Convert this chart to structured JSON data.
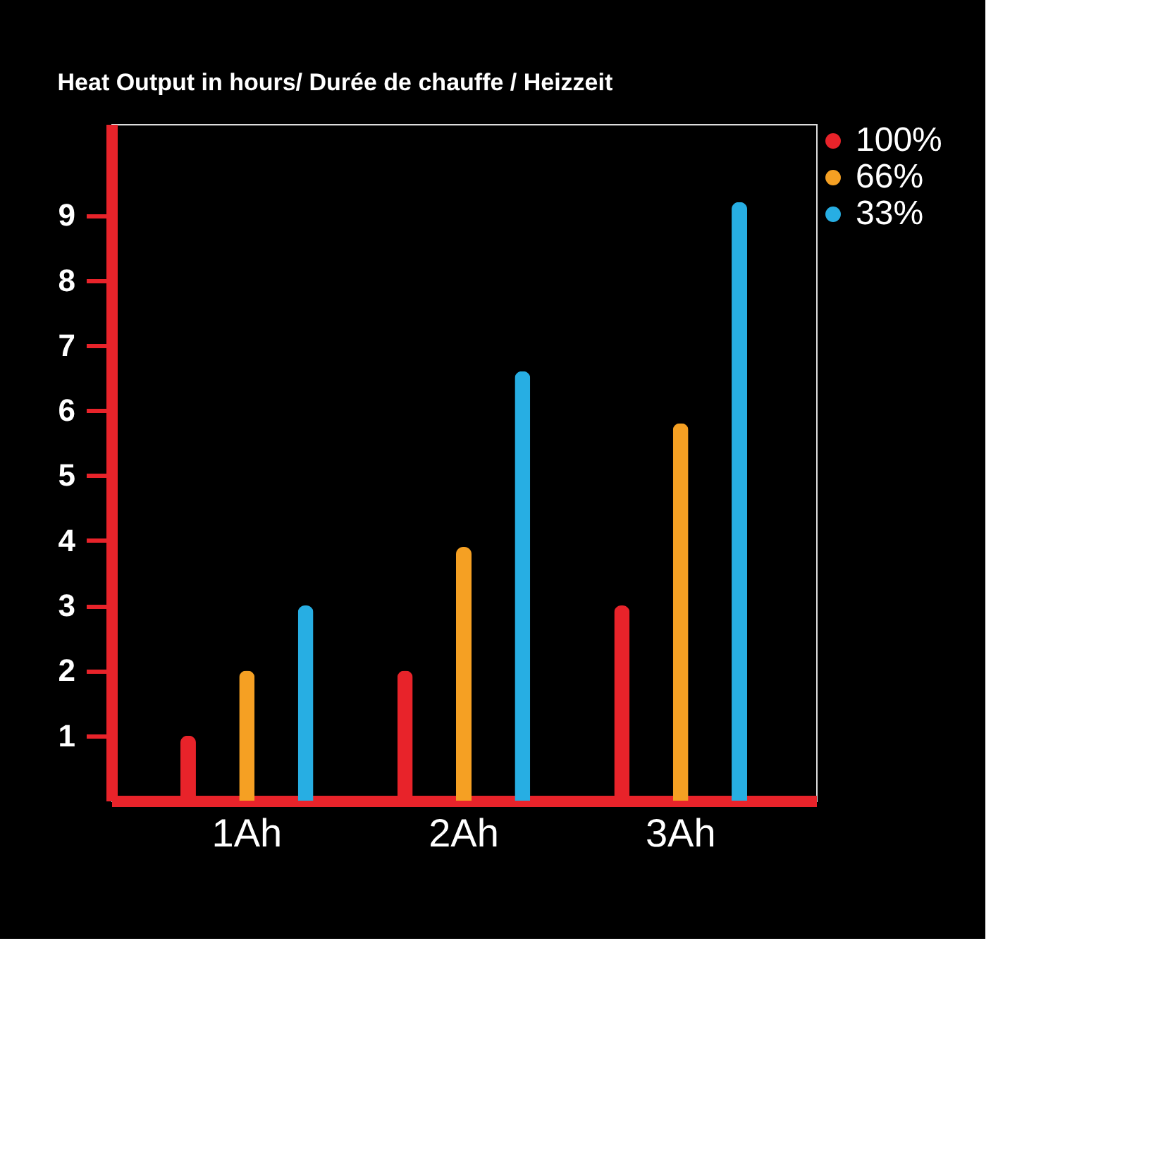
{
  "chart_data": {
    "type": "bar",
    "title": "Heat Output in hours/  Durée de chauffe / Heizzeit",
    "categories": [
      "1Ah",
      "2Ah",
      "3Ah"
    ],
    "series": [
      {
        "name": "100%",
        "color": "#e8232a",
        "values": [
          1,
          2,
          3
        ]
      },
      {
        "name": "66%",
        "color": "#f5a023",
        "values": [
          2,
          3.9,
          5.8
        ]
      },
      {
        "name": "33%",
        "color": "#27aee3",
        "values": [
          3,
          6.6,
          9.2
        ]
      }
    ],
    "ylim": [
      0,
      10.4
    ],
    "yticks": [
      1,
      2,
      3,
      4,
      5,
      6,
      7,
      8,
      9
    ],
    "grid": false,
    "legend": "top right"
  }
}
